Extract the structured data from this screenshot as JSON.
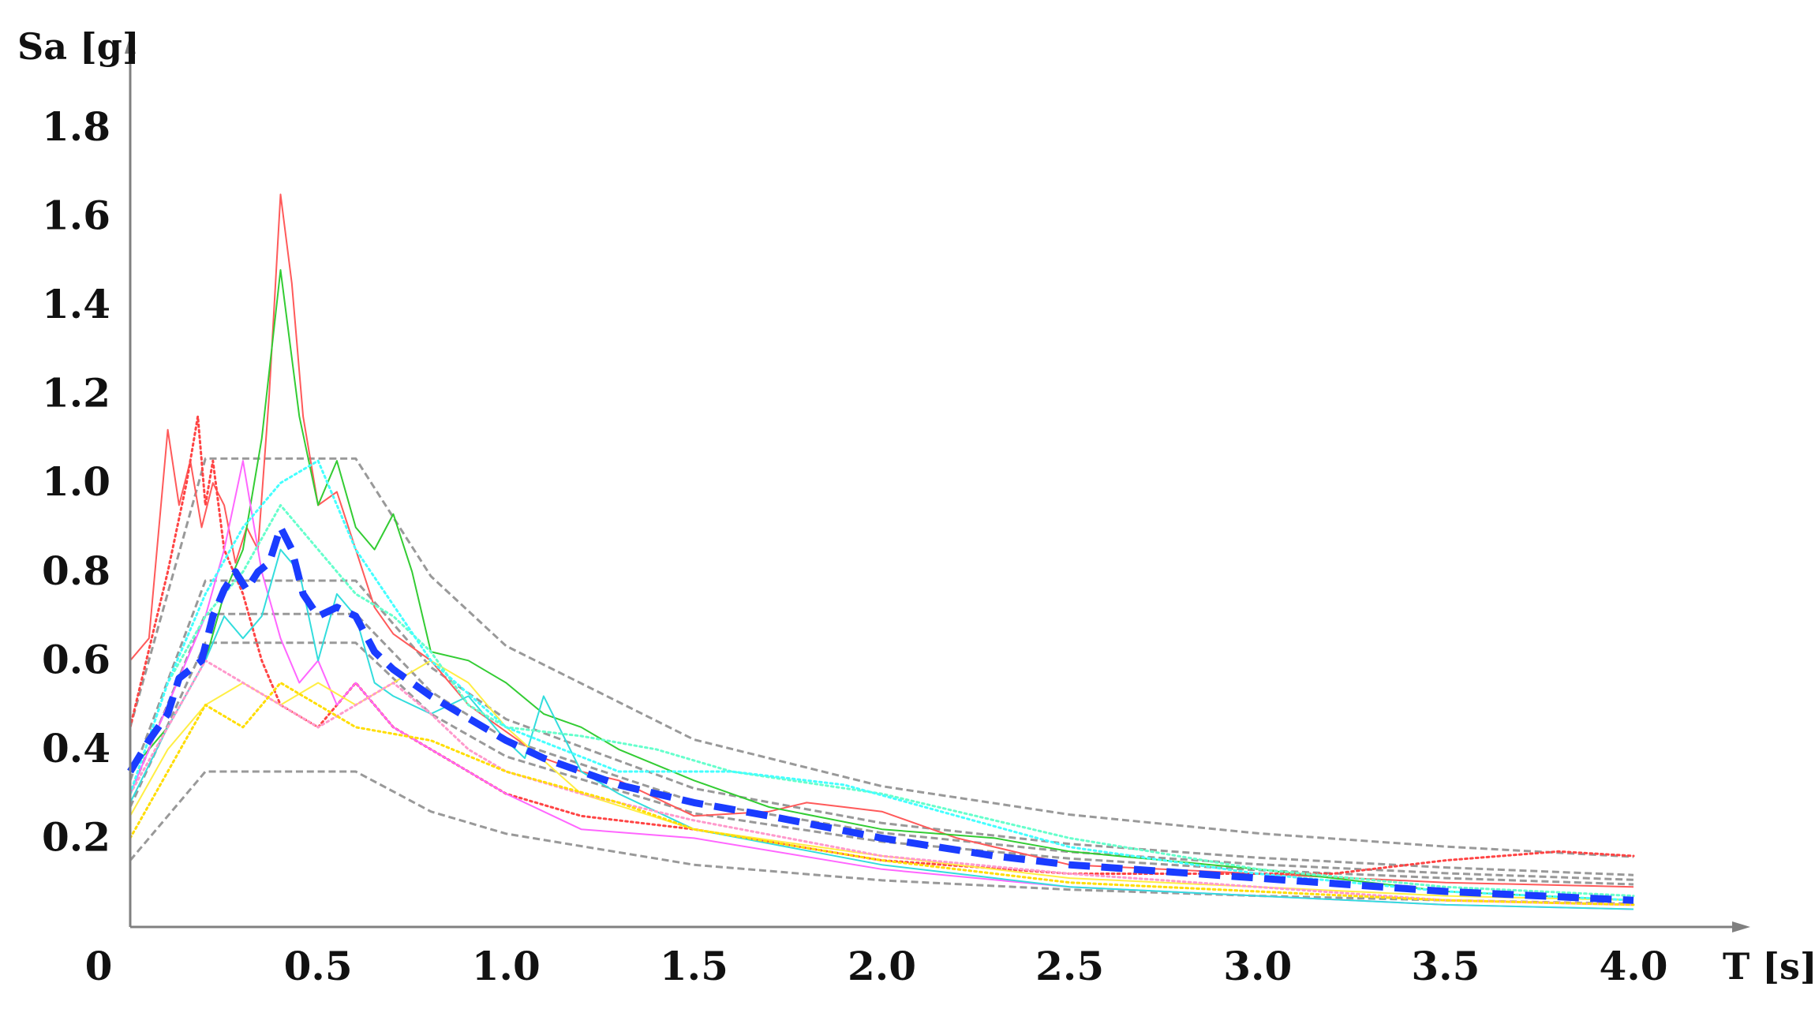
{
  "chart_data": {
    "type": "line",
    "title": "",
    "xlabel": "T [s]",
    "ylabel": "Sa [g]",
    "xlim": [
      0,
      4.3
    ],
    "ylim": [
      0,
      2.0
    ],
    "x_ticks": [
      0,
      0.5,
      1.0,
      1.5,
      2.0,
      2.5,
      3.0,
      3.5,
      4.0
    ],
    "x_tick_labels": [
      "0",
      "0.5",
      "1.0",
      "1.5",
      "2.0",
      "2.5",
      "3.0",
      "3.5",
      "4.0"
    ],
    "y_ticks": [
      0.2,
      0.4,
      0.6,
      0.8,
      1.0,
      1.2,
      1.4,
      1.6,
      1.8
    ],
    "y_tick_labels": [
      "0.2",
      "0.4",
      "0.6",
      "0.8",
      "1.0",
      "1.2",
      "1.4",
      "1.6",
      "1.8"
    ],
    "grid": false,
    "legend": "none",
    "series": [
      {
        "style": "dashed",
        "color": "#999999",
        "width": 3,
        "x": [
          0,
          0.2,
          0.6,
          0.8,
          1.0,
          1.5,
          2.0,
          2.5,
          3.0,
          3.5,
          4.0
        ],
        "y": [
          0.15,
          0.35,
          0.35,
          0.26,
          0.21,
          0.14,
          0.105,
          0.084,
          0.07,
          0.06,
          0.052
        ]
      },
      {
        "style": "dashed",
        "color": "#999999",
        "width": 3,
        "x": [
          0,
          0.2,
          0.6,
          0.8,
          1.0,
          1.5,
          2.0,
          2.5,
          3.0,
          3.5,
          4.0
        ],
        "y": [
          0.27,
          0.64,
          0.64,
          0.48,
          0.384,
          0.256,
          0.192,
          0.154,
          0.128,
          0.11,
          0.096
        ]
      },
      {
        "style": "dashed",
        "color": "#999999",
        "width": 3,
        "x": [
          0,
          0.2,
          0.6,
          0.8,
          1.0,
          1.5,
          2.0,
          2.5,
          3.0,
          3.5,
          4.0
        ],
        "y": [
          0.3,
          0.705,
          0.705,
          0.53,
          0.423,
          0.282,
          0.212,
          0.169,
          0.141,
          0.121,
          0.106
        ]
      },
      {
        "style": "dashed",
        "color": "#999999",
        "width": 3,
        "x": [
          0,
          0.2,
          0.6,
          0.8,
          1.0,
          1.5,
          2.0,
          2.5,
          3.0,
          3.5,
          4.0
        ],
        "y": [
          0.33,
          0.78,
          0.78,
          0.585,
          0.468,
          0.312,
          0.234,
          0.187,
          0.156,
          0.134,
          0.117
        ]
      },
      {
        "style": "dashed",
        "color": "#999999",
        "width": 3,
        "x": [
          0,
          0.2,
          0.6,
          0.8,
          1.0,
          1.5,
          2.0,
          2.5,
          3.0,
          3.5,
          4.0
        ],
        "y": [
          0.45,
          1.055,
          1.055,
          0.79,
          0.633,
          0.422,
          0.317,
          0.253,
          0.211,
          0.181,
          0.158
        ]
      },
      {
        "style": "solid",
        "color": "#ff5a5a",
        "width": 2,
        "x": [
          0,
          0.05,
          0.1,
          0.13,
          0.16,
          0.19,
          0.22,
          0.25,
          0.28,
          0.31,
          0.34,
          0.37,
          0.4,
          0.43,
          0.46,
          0.5,
          0.55,
          0.6,
          0.65,
          0.7,
          0.8,
          0.9,
          1.0,
          1.1,
          1.2,
          1.3,
          1.5,
          1.7,
          1.8,
          1.9,
          2.0,
          2.2,
          2.5,
          3.0,
          3.5,
          4.0
        ],
        "y": [
          0.6,
          0.65,
          1.12,
          0.95,
          1.05,
          0.9,
          1.0,
          0.95,
          0.82,
          0.9,
          0.85,
          1.2,
          1.65,
          1.45,
          1.15,
          0.95,
          0.98,
          0.85,
          0.72,
          0.66,
          0.6,
          0.5,
          0.44,
          0.38,
          0.35,
          0.33,
          0.25,
          0.26,
          0.28,
          0.27,
          0.26,
          0.2,
          0.14,
          0.12,
          0.1,
          0.09
        ]
      },
      {
        "style": "solid",
        "color": "#33cc33",
        "width": 2,
        "x": [
          0,
          0.1,
          0.2,
          0.25,
          0.3,
          0.35,
          0.4,
          0.45,
          0.5,
          0.55,
          0.6,
          0.65,
          0.7,
          0.75,
          0.8,
          0.9,
          1.0,
          1.1,
          1.2,
          1.3,
          1.5,
          1.7,
          2.0,
          2.3,
          2.5,
          3.0,
          3.5,
          4.0
        ],
        "y": [
          0.35,
          0.45,
          0.6,
          0.75,
          0.85,
          1.1,
          1.48,
          1.15,
          0.95,
          1.05,
          0.9,
          0.85,
          0.93,
          0.8,
          0.62,
          0.6,
          0.55,
          0.48,
          0.45,
          0.4,
          0.33,
          0.27,
          0.22,
          0.2,
          0.17,
          0.13,
          0.08,
          0.06
        ]
      },
      {
        "style": "dotted",
        "color": "#ff4444",
        "width": 3,
        "x": [
          0,
          0.1,
          0.15,
          0.18,
          0.2,
          0.22,
          0.25,
          0.3,
          0.35,
          0.4,
          0.5,
          0.6,
          0.7,
          0.8,
          0.9,
          1.0,
          1.2,
          1.5,
          2.0,
          2.5,
          3.0,
          3.2,
          3.5,
          3.8,
          4.0
        ],
        "y": [
          0.45,
          0.8,
          1.0,
          1.15,
          0.95,
          1.05,
          0.85,
          0.75,
          0.6,
          0.5,
          0.45,
          0.55,
          0.45,
          0.4,
          0.35,
          0.3,
          0.25,
          0.22,
          0.15,
          0.12,
          0.12,
          0.12,
          0.15,
          0.17,
          0.16
        ]
      },
      {
        "style": "solid",
        "color": "#ff66ff",
        "width": 2,
        "x": [
          0,
          0.1,
          0.2,
          0.25,
          0.3,
          0.35,
          0.4,
          0.45,
          0.5,
          0.55,
          0.6,
          0.7,
          0.8,
          0.9,
          1.0,
          1.2,
          1.5,
          2.0,
          2.5,
          3.0,
          3.5,
          4.0
        ],
        "y": [
          0.3,
          0.5,
          0.7,
          0.85,
          1.05,
          0.8,
          0.65,
          0.55,
          0.6,
          0.5,
          0.55,
          0.45,
          0.4,
          0.35,
          0.3,
          0.22,
          0.2,
          0.13,
          0.09,
          0.07,
          0.05,
          0.04
        ]
      },
      {
        "style": "solid",
        "color": "#33dddd",
        "width": 2,
        "x": [
          0,
          0.1,
          0.2,
          0.25,
          0.3,
          0.35,
          0.4,
          0.45,
          0.5,
          0.55,
          0.6,
          0.65,
          0.7,
          0.8,
          0.9,
          1.0,
          1.05,
          1.1,
          1.2,
          1.3,
          1.5,
          2.0,
          2.5,
          3.0,
          3.5,
          4.0
        ],
        "y": [
          0.28,
          0.45,
          0.6,
          0.7,
          0.65,
          0.7,
          0.85,
          0.8,
          0.6,
          0.75,
          0.7,
          0.55,
          0.52,
          0.48,
          0.52,
          0.42,
          0.38,
          0.52,
          0.35,
          0.3,
          0.22,
          0.14,
          0.09,
          0.07,
          0.05,
          0.04
        ]
      },
      {
        "style": "solid",
        "color": "#ffee44",
        "width": 2,
        "x": [
          0,
          0.1,
          0.2,
          0.3,
          0.4,
          0.5,
          0.6,
          0.7,
          0.8,
          0.9,
          1.0,
          1.2,
          1.5,
          2.0,
          2.5,
          3.0,
          3.5,
          4.0
        ],
        "y": [
          0.25,
          0.4,
          0.5,
          0.55,
          0.5,
          0.55,
          0.5,
          0.55,
          0.6,
          0.55,
          0.45,
          0.3,
          0.22,
          0.16,
          0.11,
          0.09,
          0.07,
          0.06
        ]
      },
      {
        "style": "dotted",
        "color": "#66ffcc",
        "width": 3,
        "x": [
          0,
          0.1,
          0.2,
          0.3,
          0.4,
          0.5,
          0.6,
          0.7,
          0.8,
          0.9,
          1.0,
          1.2,
          1.4,
          1.6,
          2.0,
          2.5,
          3.0,
          3.5,
          4.0
        ],
        "y": [
          0.3,
          0.55,
          0.7,
          0.8,
          0.95,
          0.85,
          0.75,
          0.7,
          0.62,
          0.5,
          0.45,
          0.43,
          0.4,
          0.35,
          0.3,
          0.2,
          0.13,
          0.09,
          0.07
        ]
      },
      {
        "style": "dotted",
        "color": "#ff99cc",
        "width": 3,
        "x": [
          0,
          0.1,
          0.2,
          0.3,
          0.4,
          0.5,
          0.6,
          0.7,
          0.8,
          0.9,
          1.0,
          1.2,
          1.5,
          2.0,
          2.5,
          3.0,
          3.5,
          4.0
        ],
        "y": [
          0.3,
          0.45,
          0.6,
          0.55,
          0.5,
          0.45,
          0.5,
          0.55,
          0.48,
          0.4,
          0.35,
          0.3,
          0.24,
          0.16,
          0.12,
          0.09,
          0.06,
          0.05
        ]
      },
      {
        "style": "dotted",
        "color": "#ffdd00",
        "width": 3,
        "x": [
          0,
          0.1,
          0.2,
          0.3,
          0.4,
          0.5,
          0.6,
          0.8,
          1.0,
          1.3,
          1.5,
          2.0,
          2.5,
          3.0,
          3.5,
          4.0
        ],
        "y": [
          0.2,
          0.35,
          0.5,
          0.45,
          0.55,
          0.5,
          0.45,
          0.42,
          0.35,
          0.28,
          0.22,
          0.15,
          0.1,
          0.08,
          0.06,
          0.05
        ]
      },
      {
        "style": "dotted",
        "color": "#44ffff",
        "width": 3,
        "x": [
          0,
          0.1,
          0.2,
          0.3,
          0.4,
          0.5,
          0.6,
          0.8,
          1.0,
          1.3,
          1.6,
          1.9,
          2.2,
          2.5,
          3.0,
          3.5,
          4.0
        ],
        "y": [
          0.3,
          0.55,
          0.75,
          0.9,
          1.0,
          1.05,
          0.85,
          0.6,
          0.45,
          0.35,
          0.35,
          0.32,
          0.25,
          0.18,
          0.12,
          0.08,
          0.06
        ]
      },
      {
        "style": "dashed",
        "color": "#1a3cff",
        "width": 9,
        "x": [
          0,
          0.05,
          0.1,
          0.13,
          0.16,
          0.19,
          0.22,
          0.25,
          0.28,
          0.31,
          0.34,
          0.37,
          0.4,
          0.43,
          0.46,
          0.5,
          0.55,
          0.6,
          0.65,
          0.7,
          0.8,
          0.9,
          1.0,
          1.1,
          1.2,
          1.3,
          1.5,
          1.7,
          2.0,
          2.3,
          2.5,
          3.0,
          3.5,
          4.0
        ],
        "y": [
          0.35,
          0.42,
          0.48,
          0.56,
          0.58,
          0.6,
          0.7,
          0.76,
          0.8,
          0.76,
          0.8,
          0.82,
          0.9,
          0.85,
          0.75,
          0.7,
          0.72,
          0.7,
          0.62,
          0.58,
          0.52,
          0.47,
          0.42,
          0.38,
          0.35,
          0.32,
          0.28,
          0.25,
          0.2,
          0.16,
          0.14,
          0.11,
          0.08,
          0.06
        ]
      }
    ]
  }
}
